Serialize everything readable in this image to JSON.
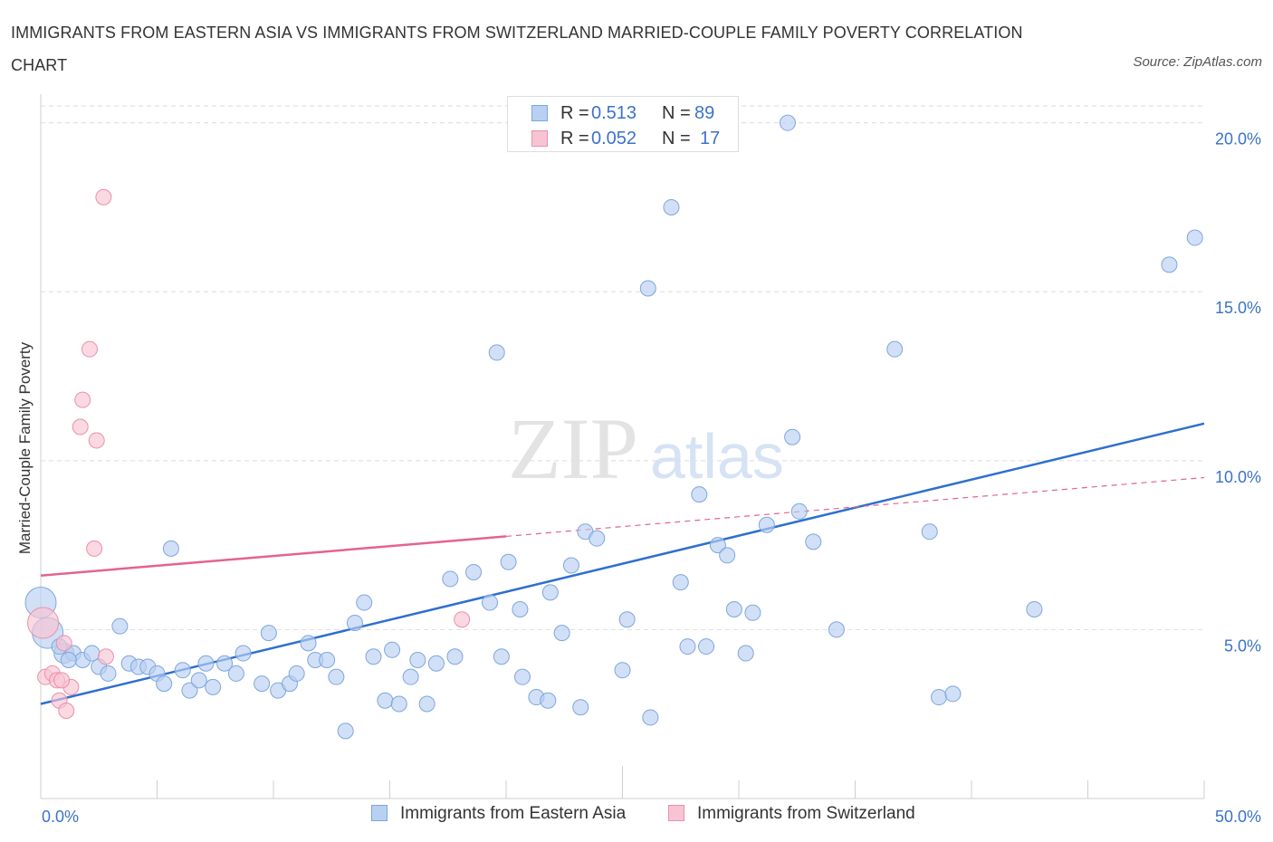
{
  "header": {
    "title": "IMMIGRANTS FROM EASTERN ASIA VS IMMIGRANTS FROM SWITZERLAND MARRIED-COUPLE FAMILY POVERTY CORRELATION CHART",
    "source": "Source: ZipAtlas.com"
  },
  "stats": {
    "r_label": "R =",
    "n_label": "N =",
    "series1": {
      "r": "0.513",
      "n": "89"
    },
    "series2": {
      "r": "0.052",
      "n": "17"
    }
  },
  "legend": {
    "series1": "Immigrants from Eastern Asia",
    "series2": "Immigrants from Switzerland"
  },
  "colors": {
    "blue_fill": "#b8d0f1",
    "blue_stroke": "#7ea6de",
    "blue_line": "#2e6fd0",
    "pink_fill": "#f7c4d3",
    "pink_stroke": "#ec8fab",
    "pink_line": "#e3648c",
    "axis_text": "#3b73c8",
    "grid": "#dddddd"
  },
  "watermark": {
    "zip": "ZIP",
    "atlas": "atlas"
  },
  "chart_data": {
    "type": "scatter",
    "xlabel": "",
    "ylabel": "Married-Couple Family Poverty",
    "xlim": [
      0,
      50
    ],
    "ylim": [
      0,
      20.5
    ],
    "x_tick_labels": [
      "0.0%",
      "50.0%"
    ],
    "y_ticks": [
      5,
      10,
      15,
      20
    ],
    "y_tick_labels": [
      "5.0%",
      "10.0%",
      "15.0%",
      "20.0%"
    ],
    "grid": true,
    "legend_position": "bottom",
    "series": [
      {
        "name": "Immigrants from Eastern Asia",
        "color": "#b8d0f1",
        "trend": {
          "x": [
            0,
            50
          ],
          "y": [
            2.8,
            11.1
          ]
        },
        "points": [
          {
            "x": 0.0,
            "y": 5.8,
            "s": "l"
          },
          {
            "x": 0.3,
            "y": 4.9,
            "s": "l"
          },
          {
            "x": 1.0,
            "y": 4.3,
            "s": "m"
          },
          {
            "x": 1.4,
            "y": 4.3
          },
          {
            "x": 1.8,
            "y": 4.1
          },
          {
            "x": 2.2,
            "y": 4.3
          },
          {
            "x": 2.5,
            "y": 3.9
          },
          {
            "x": 2.9,
            "y": 3.7
          },
          {
            "x": 3.4,
            "y": 5.1
          },
          {
            "x": 3.8,
            "y": 4.0
          },
          {
            "x": 4.2,
            "y": 3.9
          },
          {
            "x": 4.6,
            "y": 3.9
          },
          {
            "x": 5.0,
            "y": 3.7
          },
          {
            "x": 5.3,
            "y": 3.4
          },
          {
            "x": 5.6,
            "y": 7.4
          },
          {
            "x": 6.1,
            "y": 3.8
          },
          {
            "x": 6.4,
            "y": 3.2
          },
          {
            "x": 6.8,
            "y": 3.5
          },
          {
            "x": 7.1,
            "y": 4.0
          },
          {
            "x": 7.4,
            "y": 3.3
          },
          {
            "x": 7.9,
            "y": 4.0
          },
          {
            "x": 8.4,
            "y": 3.7
          },
          {
            "x": 8.7,
            "y": 4.3
          },
          {
            "x": 9.5,
            "y": 3.4
          },
          {
            "x": 9.8,
            "y": 4.9
          },
          {
            "x": 10.2,
            "y": 3.2
          },
          {
            "x": 10.7,
            "y": 3.4
          },
          {
            "x": 11.0,
            "y": 3.7
          },
          {
            "x": 11.5,
            "y": 4.6
          },
          {
            "x": 11.8,
            "y": 4.1
          },
          {
            "x": 12.3,
            "y": 4.1
          },
          {
            "x": 12.7,
            "y": 3.6
          },
          {
            "x": 13.1,
            "y": 2.0
          },
          {
            "x": 13.5,
            "y": 5.2
          },
          {
            "x": 13.9,
            "y": 5.8
          },
          {
            "x": 14.3,
            "y": 4.2
          },
          {
            "x": 14.8,
            "y": 2.9
          },
          {
            "x": 15.1,
            "y": 4.4
          },
          {
            "x": 15.4,
            "y": 2.8
          },
          {
            "x": 15.9,
            "y": 3.6
          },
          {
            "x": 16.2,
            "y": 4.1
          },
          {
            "x": 16.6,
            "y": 2.8
          },
          {
            "x": 17.0,
            "y": 4.0
          },
          {
            "x": 17.6,
            "y": 6.5
          },
          {
            "x": 17.8,
            "y": 4.2
          },
          {
            "x": 18.6,
            "y": 6.7
          },
          {
            "x": 19.3,
            "y": 5.8
          },
          {
            "x": 19.6,
            "y": 13.2
          },
          {
            "x": 19.8,
            "y": 4.2
          },
          {
            "x": 20.1,
            "y": 7.0
          },
          {
            "x": 20.6,
            "y": 5.6
          },
          {
            "x": 20.7,
            "y": 3.6
          },
          {
            "x": 21.3,
            "y": 3.0
          },
          {
            "x": 21.8,
            "y": 2.9
          },
          {
            "x": 21.9,
            "y": 6.1
          },
          {
            "x": 22.4,
            "y": 4.9
          },
          {
            "x": 22.8,
            "y": 6.9
          },
          {
            "x": 23.2,
            "y": 2.7
          },
          {
            "x": 23.4,
            "y": 7.9
          },
          {
            "x": 23.9,
            "y": 7.7
          },
          {
            "x": 25.0,
            "y": 3.8
          },
          {
            "x": 25.2,
            "y": 5.3
          },
          {
            "x": 25.6,
            "y": 19.5
          },
          {
            "x": 26.1,
            "y": 15.1
          },
          {
            "x": 26.2,
            "y": 2.4
          },
          {
            "x": 27.1,
            "y": 17.5
          },
          {
            "x": 27.5,
            "y": 6.4
          },
          {
            "x": 27.8,
            "y": 4.5
          },
          {
            "x": 28.3,
            "y": 9.0
          },
          {
            "x": 28.6,
            "y": 4.5
          },
          {
            "x": 29.1,
            "y": 7.5
          },
          {
            "x": 29.5,
            "y": 7.2
          },
          {
            "x": 29.8,
            "y": 5.6
          },
          {
            "x": 30.3,
            "y": 4.3
          },
          {
            "x": 30.6,
            "y": 5.5
          },
          {
            "x": 31.2,
            "y": 8.1
          },
          {
            "x": 32.1,
            "y": 20.0
          },
          {
            "x": 32.3,
            "y": 10.7
          },
          {
            "x": 32.6,
            "y": 8.5
          },
          {
            "x": 33.2,
            "y": 7.6
          },
          {
            "x": 34.2,
            "y": 5.0
          },
          {
            "x": 36.7,
            "y": 13.3
          },
          {
            "x": 38.2,
            "y": 7.9
          },
          {
            "x": 38.6,
            "y": 3.0
          },
          {
            "x": 39.2,
            "y": 3.1
          },
          {
            "x": 42.7,
            "y": 5.6
          },
          {
            "x": 48.5,
            "y": 15.8
          },
          {
            "x": 49.6,
            "y": 16.6
          },
          {
            "x": 0.8,
            "y": 4.5
          },
          {
            "x": 1.2,
            "y": 4.1
          }
        ]
      },
      {
        "name": "Immigrants from Switzerland",
        "color": "#f7c4d3",
        "trend": {
          "x": [
            0,
            50
          ],
          "y": [
            6.6,
            9.5
          ],
          "solid_to_x": 20
        },
        "points": [
          {
            "x": 0.1,
            "y": 5.2,
            "s": "l"
          },
          {
            "x": 0.2,
            "y": 3.6
          },
          {
            "x": 0.5,
            "y": 3.7
          },
          {
            "x": 0.7,
            "y": 3.5
          },
          {
            "x": 0.8,
            "y": 2.9
          },
          {
            "x": 1.0,
            "y": 4.6
          },
          {
            "x": 1.1,
            "y": 2.6
          },
          {
            "x": 1.3,
            "y": 3.3
          },
          {
            "x": 1.7,
            "y": 11.0
          },
          {
            "x": 1.8,
            "y": 11.8
          },
          {
            "x": 2.1,
            "y": 13.3
          },
          {
            "x": 2.3,
            "y": 7.4
          },
          {
            "x": 2.4,
            "y": 10.6
          },
          {
            "x": 2.7,
            "y": 17.8
          },
          {
            "x": 2.8,
            "y": 4.2
          },
          {
            "x": 18.1,
            "y": 5.3
          },
          {
            "x": 0.9,
            "y": 3.5
          }
        ]
      }
    ]
  }
}
